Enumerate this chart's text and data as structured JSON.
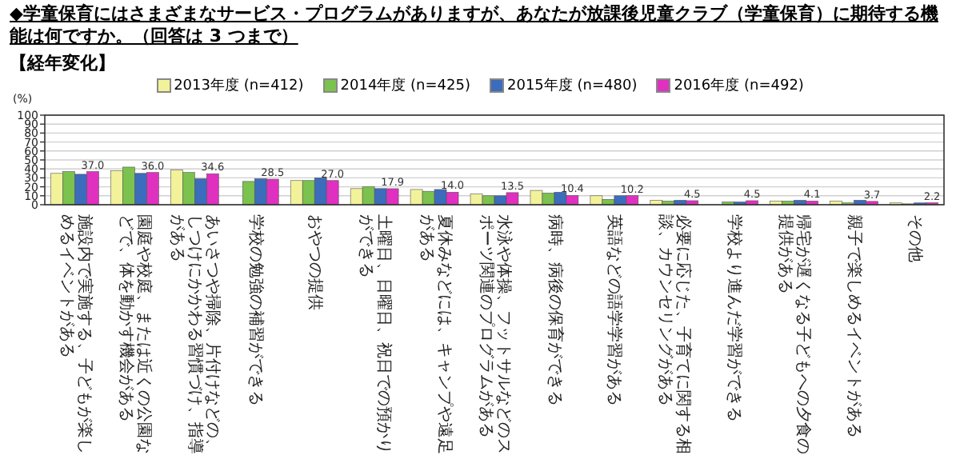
{
  "chart_data": {
    "type": "bar",
    "title": "◆学童保育にはさまざまなサービス・プログラムがありますが、あなたが放課後児童クラブ（学童保育）に期待する機能は何ですか。（回答は 3 つまで）",
    "subtitle": "【経年変化】",
    "ylabel": "(%)",
    "categories": [
      "施設内で実施する、子どもが楽しめるイベントがある",
      "園庭や校庭、または近くの公園などで、体を動かす機会がある",
      "あいさつや掃除、片付けなどの、しつけにかかわる習慣づけ、指導がある",
      "学校の勉強の補習ができる",
      "おやつの提供",
      "土曜日、日曜日、祝日での預かりができる",
      "夏休みなどには、キャンプや遠足がある",
      "水泳や体操、フットサルなどのスポーツ関連のプログラムがある",
      "病時、病後の保育ができる",
      "英語などの語学学習がある",
      "必要に応じた、子育てに関する相談、カウンセリングがある",
      "学校より進んだ学習ができる",
      "帰宅が遅くなる子どもへの夕食の提供がある",
      "親子で楽しめるイベントがある",
      "その他"
    ],
    "series": [
      {
        "name": "2013年度 (n=412)",
        "color": "#f2f29a",
        "values": [
          35,
          38,
          39,
          null,
          27,
          18,
          17,
          12,
          16,
          10,
          5,
          null,
          4,
          4,
          2
        ]
      },
      {
        "name": "2014年度 (n=425)",
        "color": "#7cc24e",
        "values": [
          37,
          42,
          36,
          26,
          27,
          20,
          15,
          10,
          13,
          6,
          4,
          3,
          4,
          2,
          1
        ]
      },
      {
        "name": "2015年度 (n=480)",
        "color": "#3c6cbc",
        "values": [
          34,
          35,
          29,
          29,
          30,
          18,
          17,
          10,
          14,
          10,
          5,
          3,
          5,
          5,
          2
        ]
      },
      {
        "name": "2016年度 (n=492)",
        "color": "#e030c0",
        "values": [
          37.0,
          36.0,
          34.6,
          28.5,
          27.0,
          17.9,
          14.0,
          13.5,
          10.4,
          10.2,
          4.5,
          4.5,
          4.1,
          3.7,
          2.2
        ],
        "value_labels": [
          "37.0",
          "36.0",
          "34.6",
          "28.5",
          "27.0",
          "17.9",
          "14.0",
          "13.5",
          "10.4",
          "10.2",
          "4.5",
          "4.5",
          "4.1",
          "3.7",
          "2.2"
        ]
      }
    ],
    "ylim": [
      0,
      100
    ],
    "yticks": [
      0,
      10,
      20,
      30,
      40,
      50,
      60,
      70,
      80,
      90,
      100
    ],
    "grid": "y",
    "legend": "top"
  }
}
